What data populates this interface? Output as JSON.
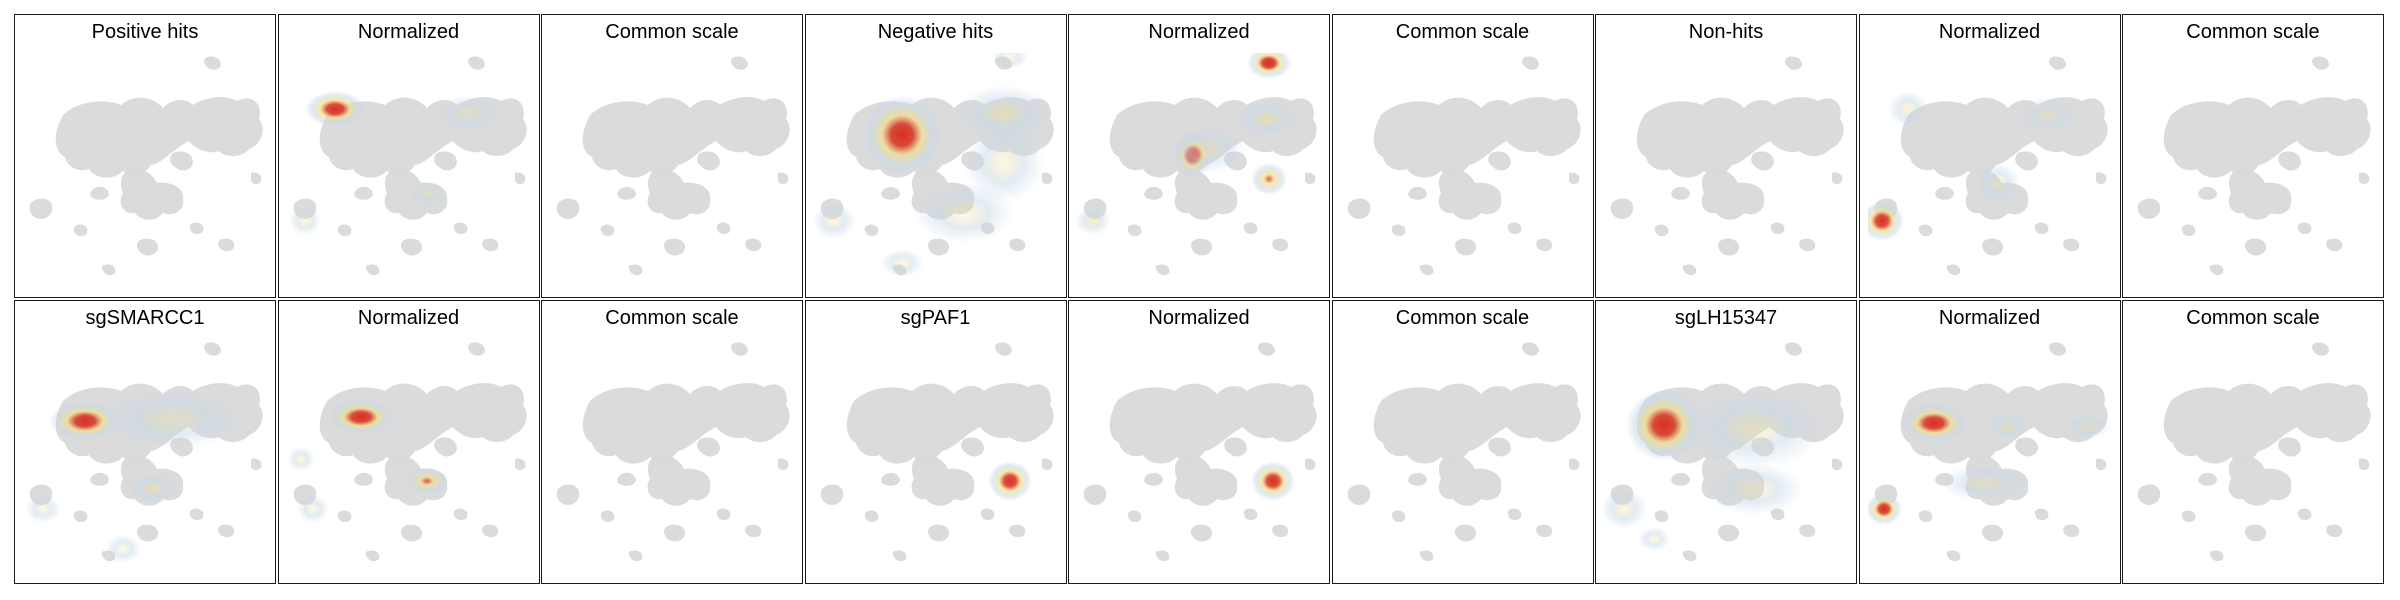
{
  "rows": [
    {
      "panels": [
        {
          "title": "Positive hits",
          "heat": "none"
        },
        {
          "title": "Normalized",
          "heat": "pos-norm"
        },
        {
          "title": "Common scale",
          "heat": "none"
        },
        {
          "title": "Negative hits",
          "heat": "neg"
        },
        {
          "title": "Normalized",
          "heat": "neg-norm"
        },
        {
          "title": "Common scale",
          "heat": "none"
        },
        {
          "title": "Non-hits",
          "heat": "none"
        },
        {
          "title": "Normalized",
          "heat": "non-norm"
        },
        {
          "title": "Common scale",
          "heat": "none"
        }
      ]
    },
    {
      "panels": [
        {
          "title": "sgSMARCC1",
          "heat": "smarcc1"
        },
        {
          "title": "Normalized",
          "heat": "smarcc1-norm"
        },
        {
          "title": "Common scale",
          "heat": "none"
        },
        {
          "title": "sgPAF1",
          "heat": "paf1"
        },
        {
          "title": "Normalized",
          "heat": "paf1"
        },
        {
          "title": "Common scale",
          "heat": "none"
        },
        {
          "title": "sgLH15347",
          "heat": "lh"
        },
        {
          "title": "Normalized",
          "heat": "lh-norm"
        },
        {
          "title": "Common scale",
          "heat": "none"
        }
      ]
    }
  ],
  "colors": {
    "background_cells": "#d9d9d9",
    "low": "#c6d8e8",
    "mid": "#f3e08a",
    "high": "#d7301f"
  }
}
